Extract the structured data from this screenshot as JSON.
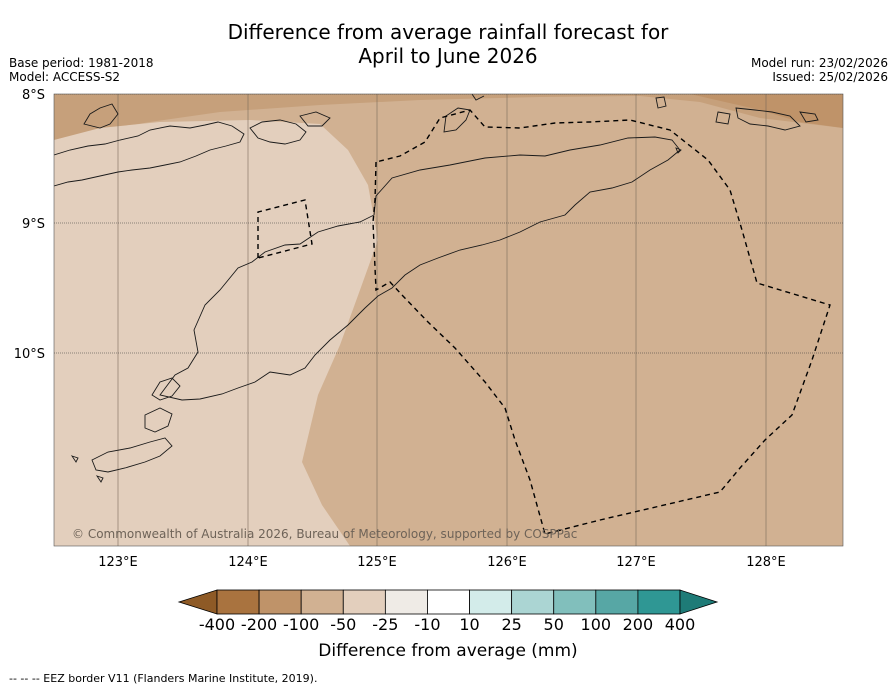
{
  "title_line1": "Difference from average rainfall forecast for",
  "title_line2": "April to June 2026",
  "meta_left": {
    "base_period": "Base period: 1981-2018",
    "model": "Model: ACCESS-S2"
  },
  "meta_right": {
    "model_run": "Model run: 23/02/2026",
    "issued": "Issued: 25/02/2026"
  },
  "lat_labels": [
    "8°S",
    "9°S",
    "10°S"
  ],
  "lon_labels": [
    "123°E",
    "124°E",
    "125°E",
    "126°E",
    "127°E",
    "128°E"
  ],
  "copyright": "© Commonwealth of Australia 2026, Bureau of Meteorology, supported by COSPPac",
  "colorbar": {
    "title": "Difference from average (mm)",
    "ticks": [
      "-400",
      "-200",
      "-100",
      "-50",
      "-25",
      "-10",
      "10",
      "25",
      "50",
      "100",
      "200",
      "400"
    ],
    "colors": [
      "#8e5a26",
      "#a9733f",
      "#bf9369",
      "#d1b192",
      "#e3cfbd",
      "#efebe6",
      "#ffffff",
      "#d3ecea",
      "#abd5d3",
      "#81bfbc",
      "#57a7a5",
      "#2f9794",
      "#1e7b77"
    ]
  },
  "footnote": "-- -- -- EEZ border V11 (Flanders Marine Institute, 2019)."
}
